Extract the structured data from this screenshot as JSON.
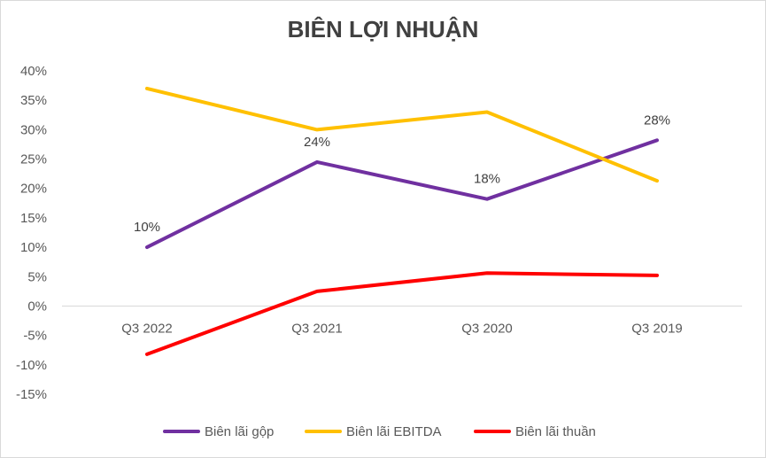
{
  "chart_data": {
    "type": "line",
    "title": "BIÊN LỢI NHUẬN",
    "xlabel": "",
    "ylabel": "",
    "categories": [
      "Q3 2022",
      "Q3 2021",
      "Q3 2020",
      "Q3 2019"
    ],
    "ylim": [
      -0.15,
      0.4
    ],
    "yticks": [
      "40%",
      "35%",
      "30%",
      "25%",
      "20%",
      "15%",
      "10%",
      "5%",
      "0%",
      "-5%",
      "-10%",
      "-15%"
    ],
    "series": [
      {
        "name": "Biên lãi gộp",
        "color": "#7030A0",
        "values": [
          0.1,
          0.245,
          0.182,
          0.282
        ],
        "labels": [
          "10%",
          "24%",
          "18%",
          "28%"
        ]
      },
      {
        "name": "Biên lãi EBITDA",
        "color": "#FFC000",
        "values": [
          0.37,
          0.3,
          0.33,
          0.213
        ]
      },
      {
        "name": "Biên lãi thuần",
        "color": "#FF0000",
        "values": [
          -0.082,
          0.025,
          0.056,
          0.052
        ]
      }
    ],
    "grid": false,
    "legend": "bottom"
  }
}
